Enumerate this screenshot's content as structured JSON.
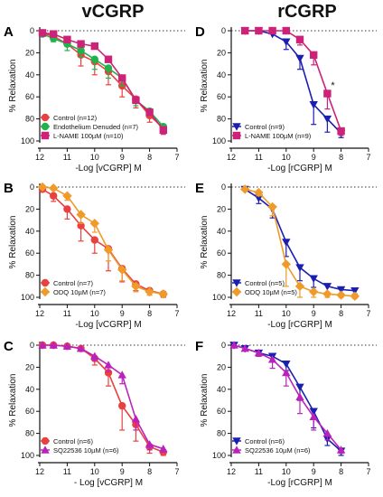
{
  "titles": {
    "left": "vCGRP",
    "right": "rCGRP"
  },
  "chart_data": [
    {
      "type": "line",
      "panel": "A",
      "ylabel": "% Relaxation",
      "xlabel": "-Log [vCGRP] M",
      "xlim": [
        12,
        7
      ],
      "ylim": [
        0,
        100
      ],
      "y_inverted": true,
      "xticks": [
        12,
        11,
        10,
        9,
        8,
        7
      ],
      "yticks": [
        0,
        20,
        40,
        60,
        80,
        100
      ],
      "legend_position": "bottom-left",
      "series": [
        {
          "name": "Control (n=12)",
          "color": "#e8413f",
          "marker": "circle",
          "x": [
            11.9,
            11.5,
            11.0,
            10.5,
            10.0,
            9.5,
            9.0,
            8.5,
            8.0,
            7.5
          ],
          "y": [
            2,
            5,
            12,
            22,
            28,
            37,
            50,
            62,
            77,
            88
          ],
          "err": [
            0,
            0,
            0,
            10,
            12,
            12,
            10,
            8,
            6,
            5
          ]
        },
        {
          "name": "Endothelium Denuded (n=7)",
          "color": "#22b24c",
          "marker": "circle",
          "x": [
            11.9,
            11.5,
            11.0,
            10.5,
            10.0,
            9.5,
            9.0,
            8.5,
            8.0,
            7.5
          ],
          "y": [
            3,
            7,
            12,
            18,
            26,
            34,
            43,
            63,
            73,
            87
          ],
          "err": [
            0,
            3,
            6,
            6,
            9,
            9,
            7,
            5,
            4,
            4
          ]
        },
        {
          "name": "L-NAME 100µM (n=10)",
          "color": "#cc2277",
          "marker": "square",
          "x": [
            11.9,
            11.5,
            11.0,
            10.5,
            10.0,
            9.5,
            9.0,
            8.5,
            8.0,
            7.5
          ],
          "y": [
            2,
            3,
            8,
            12,
            14,
            26,
            43,
            63,
            74,
            90
          ],
          "err": [
            0,
            0,
            0,
            0,
            0,
            0,
            0,
            0,
            0,
            4
          ]
        }
      ]
    },
    {
      "type": "line",
      "panel": "D",
      "ylabel": "% Relaxation",
      "xlabel": "-Log [rCGRP] M",
      "xlim": [
        12,
        7
      ],
      "ylim": [
        0,
        100
      ],
      "y_inverted": true,
      "xticks": [
        12,
        11,
        10,
        9,
        8,
        7
      ],
      "yticks": [
        0,
        20,
        40,
        60,
        80,
        100
      ],
      "legend_position": "bottom-left",
      "annotations": [
        {
          "text": "*",
          "x": 8.3,
          "y": 50
        }
      ],
      "series": [
        {
          "name": "Control (n=9)",
          "color": "#1b1fb0",
          "marker": "triangle-down",
          "x": [
            11.5,
            11.0,
            10.5,
            10.0,
            9.5,
            9.0,
            8.5,
            8.0
          ],
          "y": [
            0,
            0,
            3,
            10,
            25,
            67,
            80,
            93
          ],
          "err": [
            0,
            0,
            0,
            7,
            10,
            18,
            12,
            4
          ]
        },
        {
          "name": "L-NAME 100µM (n=9)",
          "color": "#cc2277",
          "marker": "square",
          "x": [
            11.5,
            11.0,
            10.5,
            10.0,
            9.5,
            9.0,
            8.5,
            8.0
          ],
          "y": [
            0,
            0,
            0,
            0,
            8,
            22,
            57,
            91
          ],
          "err": [
            0,
            0,
            0,
            0,
            5,
            9,
            14,
            4
          ]
        }
      ]
    },
    {
      "type": "line",
      "panel": "B",
      "ylabel": "% Relaxation",
      "xlabel": "-Log [vCGRP] M",
      "xlim": [
        12,
        7
      ],
      "ylim": [
        0,
        100
      ],
      "y_inverted": true,
      "xticks": [
        12,
        11,
        10,
        9,
        8,
        7
      ],
      "yticks": [
        0,
        20,
        40,
        60,
        80,
        100
      ],
      "legend_position": "bottom-left",
      "series": [
        {
          "name": "Control (n=7)",
          "color": "#e8413f",
          "marker": "circle",
          "x": [
            11.9,
            11.5,
            11.0,
            10.5,
            10.0,
            9.5,
            9.0,
            8.5,
            8.0,
            7.5
          ],
          "y": [
            2,
            8,
            20,
            35,
            48,
            56,
            74,
            88,
            94,
            97
          ],
          "err": [
            0,
            5,
            9,
            14,
            12,
            20,
            12,
            6,
            4,
            3
          ]
        },
        {
          "name": "ODQ 10µM (n=7)",
          "color": "#f09a2a",
          "marker": "diamond",
          "x": [
            11.9,
            11.5,
            11.0,
            10.5,
            10.0,
            9.5,
            9.0,
            8.5,
            8.0,
            7.5
          ],
          "y": [
            0,
            1,
            8,
            25,
            33,
            57,
            75,
            90,
            95,
            97
          ],
          "err": [
            0,
            0,
            4,
            8,
            8,
            10,
            10,
            5,
            3,
            2
          ]
        }
      ]
    },
    {
      "type": "line",
      "panel": "E",
      "ylabel": "% Relaxation",
      "xlabel": "-Log [rCGRP] M",
      "xlim": [
        12,
        7
      ],
      "ylim": [
        0,
        100
      ],
      "y_inverted": true,
      "xticks": [
        12,
        11,
        10,
        9,
        8,
        7
      ],
      "yticks": [
        0,
        20,
        40,
        60,
        80,
        100
      ],
      "legend_position": "bottom-left",
      "series": [
        {
          "name": "Control (n=5)",
          "color": "#1b1fb0",
          "marker": "triangle-down",
          "x": [
            11.5,
            11.0,
            10.5,
            10.0,
            9.5,
            9.0,
            8.5,
            8.0,
            7.5
          ],
          "y": [
            2,
            10,
            20,
            50,
            73,
            83,
            90,
            93,
            94
          ],
          "err": [
            0,
            5,
            8,
            13,
            12,
            8,
            6,
            4,
            3
          ]
        },
        {
          "name": "ODQ 10µM (n=5)",
          "color": "#f09a2a",
          "marker": "diamond",
          "x": [
            11.5,
            11.0,
            10.5,
            10.0,
            9.5,
            9.0,
            8.5,
            8.0,
            7.5
          ],
          "y": [
            2,
            5,
            18,
            70,
            90,
            95,
            97,
            98,
            99
          ],
          "err": [
            0,
            3,
            8,
            20,
            10,
            5,
            3,
            2,
            2
          ]
        }
      ]
    },
    {
      "type": "line",
      "panel": "C",
      "ylabel": "% Relaxation",
      "xlabel": "- Log [vCGRP] M",
      "xlim": [
        12,
        7
      ],
      "ylim": [
        0,
        100
      ],
      "y_inverted": true,
      "xticks": [
        12,
        11,
        10,
        9,
        8,
        7
      ],
      "yticks": [
        0,
        20,
        40,
        60,
        80,
        100
      ],
      "legend_position": "bottom-left",
      "series": [
        {
          "name": "Control (n=6)",
          "color": "#e8413f",
          "marker": "circle",
          "x": [
            11.9,
            11.5,
            11.0,
            10.5,
            10.0,
            9.5,
            9.0,
            8.5,
            8.0,
            7.5
          ],
          "y": [
            0,
            0,
            1,
            3,
            12,
            25,
            55,
            72,
            92,
            97
          ],
          "err": [
            0,
            0,
            0,
            2,
            6,
            12,
            22,
            15,
            6,
            3
          ]
        },
        {
          "name": "SQ22536 10µM (n=6)",
          "color": "#bb22bb",
          "marker": "triangle-up",
          "x": [
            11.9,
            11.5,
            11.0,
            10.5,
            10.0,
            9.5,
            9.0,
            8.5,
            8.0,
            7.5
          ],
          "y": [
            0,
            0,
            1,
            3,
            10,
            18,
            27,
            67,
            90,
            94
          ],
          "err": [
            0,
            0,
            0,
            2,
            4,
            6,
            8,
            10,
            5,
            3
          ]
        }
      ]
    },
    {
      "type": "line",
      "panel": "F",
      "ylabel": "% Relaxation",
      "xlabel": "-Log [rCGRP] M",
      "xlim": [
        12,
        7
      ],
      "ylim": [
        0,
        100
      ],
      "y_inverted": true,
      "xticks": [
        12,
        11,
        10,
        9,
        8,
        7
      ],
      "yticks": [
        0,
        20,
        40,
        60,
        80,
        100
      ],
      "legend_position": "bottom-left",
      "series": [
        {
          "name": "Control (n=6)",
          "color": "#1b1fb0",
          "marker": "triangle-down",
          "x": [
            11.9,
            11.5,
            11.0,
            10.5,
            10.0,
            9.5,
            9.0,
            8.5,
            8.0
          ],
          "y": [
            0,
            3,
            7,
            10,
            17,
            38,
            60,
            85,
            96
          ],
          "err": [
            0,
            0,
            3,
            5,
            6,
            12,
            15,
            6,
            4
          ]
        },
        {
          "name": "SQ22536 10µM (n=6)",
          "color": "#bb22bb",
          "marker": "triangle-up",
          "x": [
            11.9,
            11.5,
            11.0,
            10.5,
            10.0,
            9.5,
            9.0,
            8.5,
            8.0
          ],
          "y": [
            0,
            3,
            7,
            13,
            25,
            47,
            65,
            80,
            95
          ],
          "err": [
            0,
            0,
            3,
            8,
            12,
            15,
            12,
            6,
            3
          ]
        }
      ]
    }
  ]
}
